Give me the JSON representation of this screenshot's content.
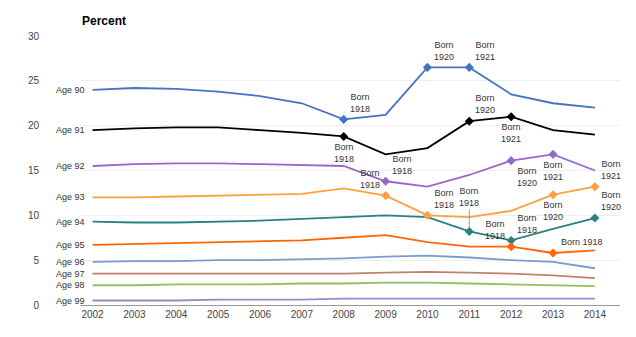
{
  "chart_data": {
    "type": "line",
    "ylabel": "Percent",
    "x": [
      2002,
      2003,
      2004,
      2005,
      2006,
      2007,
      2008,
      2009,
      2010,
      2011,
      2012,
      2013,
      2014
    ],
    "xlim": [
      2001.7,
      2014.6
    ],
    "xticks": [
      2002,
      2003,
      2004,
      2005,
      2006,
      2007,
      2008,
      2009,
      2010,
      2011,
      2012,
      2013,
      2014
    ],
    "ylim": [
      0,
      30
    ],
    "yticks": [
      0,
      5,
      10,
      15,
      20,
      25,
      30
    ],
    "grid": true,
    "marker": "diamond",
    "series": [
      {
        "name": "Age 90",
        "color": "#4472C4",
        "values": [
          24.0,
          24.2,
          24.1,
          23.8,
          23.3,
          22.5,
          20.7,
          21.2,
          26.5,
          26.5,
          23.5,
          22.5,
          22.0
        ]
      },
      {
        "name": "Age 91",
        "color": "#000000",
        "values": [
          19.5,
          19.7,
          19.8,
          19.8,
          19.5,
          19.2,
          18.8,
          16.8,
          17.5,
          20.5,
          21.0,
          19.5,
          19.0
        ]
      },
      {
        "name": "Age 92",
        "color": "#9966CC",
        "values": [
          15.5,
          15.7,
          15.8,
          15.8,
          15.7,
          15.6,
          15.5,
          13.8,
          13.2,
          14.5,
          16.1,
          16.8,
          15.0
        ]
      },
      {
        "name": "Age 93",
        "color": "#FFA040",
        "values": [
          12.0,
          12.0,
          12.1,
          12.2,
          12.3,
          12.4,
          13.0,
          12.2,
          10.0,
          9.8,
          10.5,
          12.3,
          13.2
        ]
      },
      {
        "name": "Age 94",
        "color": "#2B8080",
        "values": [
          9.3,
          9.2,
          9.2,
          9.3,
          9.4,
          9.6,
          9.8,
          10.0,
          9.8,
          8.2,
          7.2,
          8.5,
          9.7
        ]
      },
      {
        "name": "Age 95",
        "color": "#FF6600",
        "values": [
          6.7,
          6.8,
          6.9,
          7.0,
          7.1,
          7.2,
          7.5,
          7.8,
          7.0,
          6.5,
          6.5,
          5.8,
          6.1
        ]
      },
      {
        "name": "Age 96",
        "color": "#7B9BD0",
        "values": [
          4.8,
          4.9,
          4.9,
          5.0,
          5.0,
          5.1,
          5.2,
          5.4,
          5.5,
          5.3,
          5.0,
          4.8,
          4.1
        ]
      },
      {
        "name": "Age 97",
        "color": "#C08070",
        "values": [
          3.5,
          3.5,
          3.5,
          3.5,
          3.5,
          3.5,
          3.5,
          3.6,
          3.7,
          3.6,
          3.5,
          3.3,
          3.0
        ]
      },
      {
        "name": "Age 98",
        "color": "#90C060",
        "values": [
          2.2,
          2.2,
          2.3,
          2.3,
          2.3,
          2.4,
          2.4,
          2.5,
          2.5,
          2.4,
          2.3,
          2.2,
          2.1
        ]
      },
      {
        "name": "Age 99",
        "color": "#9090C8",
        "values": [
          0.5,
          0.5,
          0.5,
          0.6,
          0.6,
          0.6,
          0.7,
          0.7,
          0.7,
          0.7,
          0.7,
          0.7,
          0.7
        ]
      }
    ],
    "annotations": [
      {
        "series": "Age 90",
        "x": 2008,
        "text": "Born\n1918"
      },
      {
        "series": "Age 90",
        "x": 2010,
        "text": "Born\n1920"
      },
      {
        "series": "Age 90",
        "x": 2011,
        "text": "Born\n1921"
      },
      {
        "series": "Age 91",
        "x": 2008,
        "text": "Born\n1918"
      },
      {
        "series": "Age 91",
        "x": 2011,
        "text": "Born\n1920"
      },
      {
        "series": "Age 91",
        "x": 2012,
        "text": "Born\n1921"
      },
      {
        "series": "Age 92",
        "x": 2009,
        "text": "Born\n1918"
      },
      {
        "series": "Age 92",
        "x": 2012,
        "text": "Born\n1920"
      },
      {
        "series": "Age 92",
        "x": 2013,
        "text": "Born\n1921"
      },
      {
        "series": "Age 93",
        "x": 2009,
        "text": "Born\n1918"
      },
      {
        "series": "Age 93",
        "x": 2010,
        "text": "Born\n1918"
      },
      {
        "series": "Age 93",
        "x": 2013,
        "text": "Born\n1920"
      },
      {
        "series": "Age 93",
        "x": 2014,
        "text": "Born\n1921"
      },
      {
        "series": "Age 94",
        "x": 2011,
        "text": "Born\n1918"
      },
      {
        "series": "Age 94",
        "x": 2012,
        "text": "Born\n1918"
      },
      {
        "series": "Age 94",
        "x": 2014,
        "text": "Born\n1920"
      },
      {
        "series": "Age 95",
        "x": 2012,
        "text": "Born\n1918"
      },
      {
        "series": "Age 95",
        "x": 2013,
        "text": "Born 1918"
      }
    ]
  }
}
